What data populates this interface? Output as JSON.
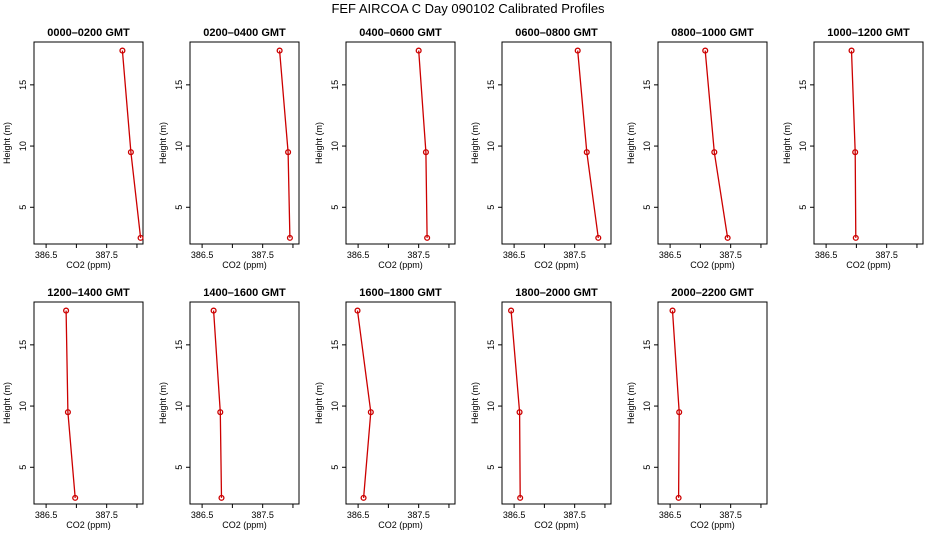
{
  "title": "FEF AIRCOA C  Day 090102  Calibrated Profiles",
  "colors": {
    "line": "#cc0000",
    "marker": "#cc0000",
    "axis": "#000000"
  },
  "chart_data": [
    {
      "type": "line",
      "title": "0000–0200 GMT",
      "xlabel": "CO2 (ppm)",
      "ylabel": "Height (m)",
      "xlim": [
        386.3,
        388.1
      ],
      "ylim": [
        2,
        18.5
      ],
      "x_ticks": [
        386.5,
        387,
        387.5,
        388
      ],
      "x_tick_labels": [
        "386.5",
        "",
        "387.5",
        ""
      ],
      "y_ticks": [
        5,
        10,
        15
      ],
      "y_tick_labels": [
        "5",
        "10",
        "15"
      ],
      "series": [
        {
          "points": [
            [
              388.06,
              2.5
            ],
            [
              387.9,
              9.5
            ],
            [
              387.76,
              17.8
            ]
          ]
        }
      ]
    },
    {
      "type": "line",
      "title": "0200–0400 GMT",
      "xlabel": "CO2 (ppm)",
      "ylabel": "Height (m)",
      "xlim": [
        386.3,
        388.1
      ],
      "ylim": [
        2,
        18.5
      ],
      "x_ticks": [
        386.5,
        387,
        387.5,
        388
      ],
      "x_tick_labels": [
        "386.5",
        "",
        "387.5",
        ""
      ],
      "y_ticks": [
        5,
        10,
        15
      ],
      "y_tick_labels": [
        "5",
        "10",
        "15"
      ],
      "series": [
        {
          "points": [
            [
              387.95,
              2.5
            ],
            [
              387.92,
              9.5
            ],
            [
              387.78,
              17.8
            ]
          ]
        }
      ]
    },
    {
      "type": "line",
      "title": "0400–0600 GMT",
      "xlabel": "CO2 (ppm)",
      "ylabel": "Height (m)",
      "xlim": [
        386.3,
        388.1
      ],
      "ylim": [
        2,
        18.5
      ],
      "x_ticks": [
        386.5,
        387,
        387.5,
        388
      ],
      "x_tick_labels": [
        "386.5",
        "",
        "387.5",
        ""
      ],
      "y_ticks": [
        5,
        10,
        15
      ],
      "y_tick_labels": [
        "5",
        "10",
        "15"
      ],
      "series": [
        {
          "points": [
            [
              387.64,
              2.5
            ],
            [
              387.62,
              9.5
            ],
            [
              387.5,
              17.8
            ]
          ]
        }
      ]
    },
    {
      "type": "line",
      "title": "0600–0800 GMT",
      "xlabel": "CO2 (ppm)",
      "ylabel": "Height (m)",
      "xlim": [
        386.3,
        388.1
      ],
      "ylim": [
        2,
        18.5
      ],
      "x_ticks": [
        386.5,
        387,
        387.5,
        388
      ],
      "x_tick_labels": [
        "386.5",
        "",
        "387.5",
        ""
      ],
      "y_ticks": [
        5,
        10,
        15
      ],
      "y_tick_labels": [
        "5",
        "10",
        "15"
      ],
      "series": [
        {
          "points": [
            [
              387.89,
              2.5
            ],
            [
              387.7,
              9.5
            ],
            [
              387.55,
              17.8
            ]
          ]
        }
      ]
    },
    {
      "type": "line",
      "title": "0800–1000 GMT",
      "xlabel": "CO2 (ppm)",
      "ylabel": "Height (m)",
      "xlim": [
        386.3,
        388.1
      ],
      "ylim": [
        2,
        18.5
      ],
      "x_ticks": [
        386.5,
        387,
        387.5,
        388
      ],
      "x_tick_labels": [
        "386.5",
        "",
        "387.5",
        ""
      ],
      "y_ticks": [
        5,
        10,
        15
      ],
      "y_tick_labels": [
        "5",
        "10",
        "15"
      ],
      "series": [
        {
          "points": [
            [
              387.45,
              2.5
            ],
            [
              387.23,
              9.5
            ],
            [
              387.08,
              17.8
            ]
          ]
        }
      ]
    },
    {
      "type": "line",
      "title": "1000–1200 GMT",
      "xlabel": "CO2 (ppm)",
      "ylabel": "Height (m)",
      "xlim": [
        386.3,
        388.1
      ],
      "ylim": [
        2,
        18.5
      ],
      "x_ticks": [
        386.5,
        387,
        387.5,
        388
      ],
      "x_tick_labels": [
        "386.5",
        "",
        "387.5",
        ""
      ],
      "y_ticks": [
        5,
        10,
        15
      ],
      "y_tick_labels": [
        "5",
        "10",
        "15"
      ],
      "series": [
        {
          "points": [
            [
              386.99,
              2.5
            ],
            [
              386.98,
              9.5
            ],
            [
              386.92,
              17.8
            ]
          ]
        }
      ]
    },
    {
      "type": "line",
      "title": "1200–1400 GMT",
      "xlabel": "CO2 (ppm)",
      "ylabel": "Height (m)",
      "xlim": [
        386.3,
        388.1
      ],
      "ylim": [
        2,
        18.5
      ],
      "x_ticks": [
        386.5,
        387,
        387.5,
        388
      ],
      "x_tick_labels": [
        "386.5",
        "",
        "387.5",
        ""
      ],
      "y_ticks": [
        5,
        10,
        15
      ],
      "y_tick_labels": [
        "5",
        "10",
        "15"
      ],
      "series": [
        {
          "points": [
            [
              386.98,
              2.5
            ],
            [
              386.86,
              9.5
            ],
            [
              386.83,
              17.8
            ]
          ]
        }
      ]
    },
    {
      "type": "line",
      "title": "1400–1600 GMT",
      "xlabel": "CO2 (ppm)",
      "ylabel": "Height (m)",
      "xlim": [
        386.3,
        388.1
      ],
      "ylim": [
        2,
        18.5
      ],
      "x_ticks": [
        386.5,
        387,
        387.5,
        388
      ],
      "x_tick_labels": [
        "386.5",
        "",
        "387.5",
        ""
      ],
      "y_ticks": [
        5,
        10,
        15
      ],
      "y_tick_labels": [
        "5",
        "10",
        "15"
      ],
      "series": [
        {
          "points": [
            [
              386.82,
              2.5
            ],
            [
              386.8,
              9.5
            ],
            [
              386.69,
              17.8
            ]
          ]
        }
      ]
    },
    {
      "type": "line",
      "title": "1600–1800 GMT",
      "xlabel": "CO2 (ppm)",
      "ylabel": "Height (m)",
      "xlim": [
        386.3,
        388.1
      ],
      "ylim": [
        2,
        18.5
      ],
      "x_ticks": [
        386.5,
        387,
        387.5,
        388
      ],
      "x_tick_labels": [
        "386.5",
        "",
        "387.5",
        ""
      ],
      "y_ticks": [
        5,
        10,
        15
      ],
      "y_tick_labels": [
        "5",
        "10",
        "15"
      ],
      "series": [
        {
          "points": [
            [
              386.59,
              2.5
            ],
            [
              386.71,
              9.5
            ],
            [
              386.49,
              17.8
            ]
          ]
        }
      ]
    },
    {
      "type": "line",
      "title": "1800–2000 GMT",
      "xlabel": "CO2 (ppm)",
      "ylabel": "Height (m)",
      "xlim": [
        386.3,
        388.1
      ],
      "ylim": [
        2,
        18.5
      ],
      "x_ticks": [
        386.5,
        387,
        387.5,
        388
      ],
      "x_tick_labels": [
        "386.5",
        "",
        "387.5",
        ""
      ],
      "y_ticks": [
        5,
        10,
        15
      ],
      "y_tick_labels": [
        "5",
        "10",
        "15"
      ],
      "series": [
        {
          "points": [
            [
              386.6,
              2.5
            ],
            [
              386.59,
              9.5
            ],
            [
              386.45,
              17.8
            ]
          ]
        }
      ]
    },
    {
      "type": "line",
      "title": "2000–2200 GMT",
      "xlabel": "CO2 (ppm)",
      "ylabel": "Height (m)",
      "xlim": [
        386.3,
        388.1
      ],
      "ylim": [
        2,
        18.5
      ],
      "x_ticks": [
        386.5,
        387,
        387.5,
        388
      ],
      "x_tick_labels": [
        "386.5",
        "",
        "387.5",
        ""
      ],
      "y_ticks": [
        5,
        10,
        15
      ],
      "y_tick_labels": [
        "5",
        "10",
        "15"
      ],
      "series": [
        {
          "points": [
            [
              386.64,
              2.5
            ],
            [
              386.65,
              9.5
            ],
            [
              386.54,
              17.8
            ]
          ]
        }
      ]
    }
  ]
}
